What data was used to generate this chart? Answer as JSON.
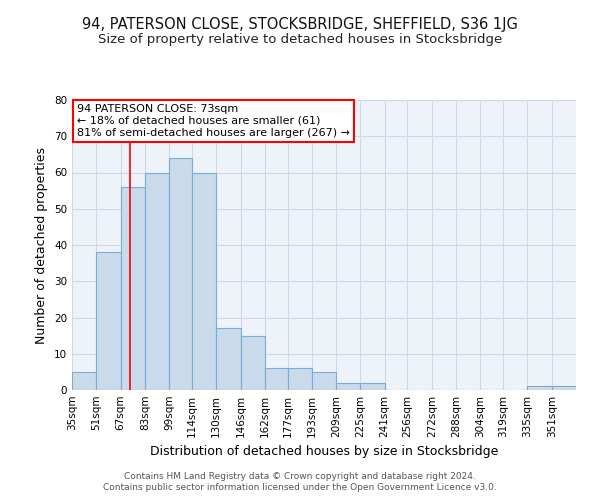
{
  "title1": "94, PATERSON CLOSE, STOCKSBRIDGE, SHEFFIELD, S36 1JG",
  "title2": "Size of property relative to detached houses in Stocksbridge",
  "xlabel": "Distribution of detached houses by size in Stocksbridge",
  "ylabel": "Number of detached properties",
  "bin_labels": [
    "35sqm",
    "51sqm",
    "67sqm",
    "83sqm",
    "99sqm",
    "114sqm",
    "130sqm",
    "146sqm",
    "162sqm",
    "177sqm",
    "193sqm",
    "209sqm",
    "225sqm",
    "241sqm",
    "256sqm",
    "272sqm",
    "288sqm",
    "304sqm",
    "319sqm",
    "335sqm",
    "351sqm"
  ],
  "bin_edges": [
    35,
    51,
    67,
    83,
    99,
    114,
    130,
    146,
    162,
    177,
    193,
    209,
    225,
    241,
    256,
    272,
    288,
    304,
    319,
    335,
    351
  ],
  "counts": [
    5,
    38,
    56,
    60,
    64,
    60,
    17,
    15,
    6,
    6,
    5,
    2,
    2,
    0,
    0,
    0,
    0,
    0,
    0,
    1,
    1
  ],
  "bar_color": "#c9daea",
  "bar_edge_color": "#7aadd4",
  "property_line_x": 73,
  "property_line_color": "red",
  "ylim": [
    0,
    80
  ],
  "yticks": [
    0,
    10,
    20,
    30,
    40,
    50,
    60,
    70,
    80
  ],
  "annotation_line1": "94 PATERSON CLOSE: 73sqm",
  "annotation_line2": "← 18% of detached houses are smaller (61)",
  "annotation_line3": "81% of semi-detached houses are larger (267) →",
  "footer1": "Contains HM Land Registry data © Crown copyright and database right 2024.",
  "footer2": "Contains public sector information licensed under the Open Government Licence v3.0.",
  "background_color": "#eef2f9",
  "fig_bg_color": "#ffffff",
  "title1_fontsize": 10.5,
  "title2_fontsize": 9.5,
  "grid_color": "#d0d8e8",
  "annotation_fontsize": 8,
  "ylabel_fontsize": 9,
  "xlabel_fontsize": 9,
  "tick_fontsize": 7.5,
  "footer_fontsize": 6.5
}
